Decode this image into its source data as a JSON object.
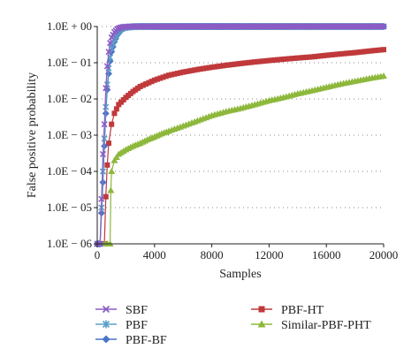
{
  "chart_data": {
    "type": "scatter",
    "xlabel": "Samples",
    "ylabel": "False positive probability",
    "xlim": [
      0,
      20000
    ],
    "ylim": [
      1e-06,
      1
    ],
    "yscale": "log",
    "x_ticks": [
      "0",
      "4000",
      "8000",
      "12000",
      "16000",
      "20000"
    ],
    "x_tick_values": [
      0,
      4000,
      8000,
      12000,
      16000,
      20000
    ],
    "y_ticks": [
      "1.0E − 06",
      "1.0E − 05",
      "1.0E − 04",
      "1.0E − 03",
      "1.0E − 02",
      "1.0E − 01",
      "1.0E + 00"
    ],
    "y_tick_values": [
      1e-06,
      1e-05,
      0.0001,
      0.001,
      0.01,
      0.1,
      1
    ],
    "grid": "horizontal dotted",
    "legend_position": "bottom",
    "series": [
      {
        "name": "SBF",
        "color": "#8a5cc4",
        "marker": "x",
        "points": [
          [
            0,
            1e-06
          ],
          [
            200,
            1e-06
          ],
          [
            400,
            0.0003
          ],
          [
            500,
            0.002
          ],
          [
            600,
            0.02
          ],
          [
            700,
            0.08
          ],
          [
            800,
            0.2
          ],
          [
            900,
            0.35
          ],
          [
            1000,
            0.5
          ],
          [
            1200,
            0.7
          ],
          [
            1400,
            0.85
          ],
          [
            1600,
            0.93
          ],
          [
            1800,
            0.97
          ],
          [
            2000,
            0.99
          ],
          [
            2500,
            1
          ],
          [
            20000,
            1
          ]
        ]
      },
      {
        "name": "PBF",
        "color": "#5aa0c8",
        "marker": "star",
        "points": [
          [
            0,
            1e-06
          ],
          [
            200,
            1e-06
          ],
          [
            400,
            0.0001
          ],
          [
            500,
            0.0008
          ],
          [
            600,
            0.006
          ],
          [
            700,
            0.025
          ],
          [
            800,
            0.07
          ],
          [
            900,
            0.14
          ],
          [
            1000,
            0.25
          ],
          [
            1200,
            0.45
          ],
          [
            1400,
            0.65
          ],
          [
            1600,
            0.8
          ],
          [
            1800,
            0.9
          ],
          [
            2000,
            0.95
          ],
          [
            2500,
            0.99
          ],
          [
            3000,
            1
          ],
          [
            20000,
            1
          ]
        ]
      },
      {
        "name": "PBF-BF",
        "color": "#4a74c8",
        "marker": "diamond",
        "points": [
          [
            0,
            1e-06
          ],
          [
            200,
            1e-06
          ],
          [
            400,
            5e-05
          ],
          [
            500,
            0.0005
          ],
          [
            600,
            0.004
          ],
          [
            700,
            0.018
          ],
          [
            800,
            0.05
          ],
          [
            900,
            0.11
          ],
          [
            1000,
            0.2
          ],
          [
            1200,
            0.38
          ],
          [
            1400,
            0.58
          ],
          [
            1600,
            0.74
          ],
          [
            1800,
            0.86
          ],
          [
            2000,
            0.93
          ],
          [
            2500,
            0.98
          ],
          [
            3000,
            0.995
          ],
          [
            4000,
            1
          ],
          [
            20000,
            1
          ]
        ]
      },
      {
        "name": "PBF-HT",
        "color": "#c0393b",
        "marker": "square",
        "points": [
          [
            0,
            1e-06
          ],
          [
            500,
            1e-06
          ],
          [
            600,
            2e-05
          ],
          [
            700,
            0.00015
          ],
          [
            800,
            0.0006
          ],
          [
            1000,
            0.002
          ],
          [
            1200,
            0.004
          ],
          [
            1500,
            0.007
          ],
          [
            2000,
            0.011
          ],
          [
            2500,
            0.016
          ],
          [
            3000,
            0.022
          ],
          [
            4000,
            0.033
          ],
          [
            5000,
            0.045
          ],
          [
            6000,
            0.055
          ],
          [
            7000,
            0.065
          ],
          [
            8000,
            0.075
          ],
          [
            9000,
            0.085
          ],
          [
            10000,
            0.095
          ],
          [
            11000,
            0.105
          ],
          [
            12000,
            0.115
          ],
          [
            13000,
            0.125
          ],
          [
            14000,
            0.135
          ],
          [
            15000,
            0.145
          ],
          [
            16000,
            0.16
          ],
          [
            17000,
            0.175
          ],
          [
            18000,
            0.19
          ],
          [
            19000,
            0.21
          ],
          [
            20000,
            0.23
          ]
        ]
      },
      {
        "name": "Similar-PBF-PHT",
        "color": "#8db83c",
        "marker": "triangle",
        "points": [
          [
            0,
            1e-06
          ],
          [
            900,
            1e-06
          ],
          [
            950,
            3e-05
          ],
          [
            1000,
            0.0001
          ],
          [
            1200,
            0.0002
          ],
          [
            1500,
            0.0003
          ],
          [
            2000,
            0.0004
          ],
          [
            2500,
            0.0005
          ],
          [
            3000,
            0.0006
          ],
          [
            3500,
            0.00075
          ],
          [
            4000,
            0.0009
          ],
          [
            4500,
            0.0011
          ],
          [
            5000,
            0.0013
          ],
          [
            6000,
            0.0018
          ],
          [
            7000,
            0.0025
          ],
          [
            8000,
            0.0035
          ],
          [
            9000,
            0.0045
          ],
          [
            10000,
            0.0055
          ],
          [
            11000,
            0.007
          ],
          [
            12000,
            0.009
          ],
          [
            13000,
            0.011
          ],
          [
            14000,
            0.014
          ],
          [
            15000,
            0.017
          ],
          [
            16000,
            0.021
          ],
          [
            17000,
            0.026
          ],
          [
            18000,
            0.031
          ],
          [
            19000,
            0.037
          ],
          [
            20000,
            0.043
          ]
        ]
      }
    ]
  }
}
